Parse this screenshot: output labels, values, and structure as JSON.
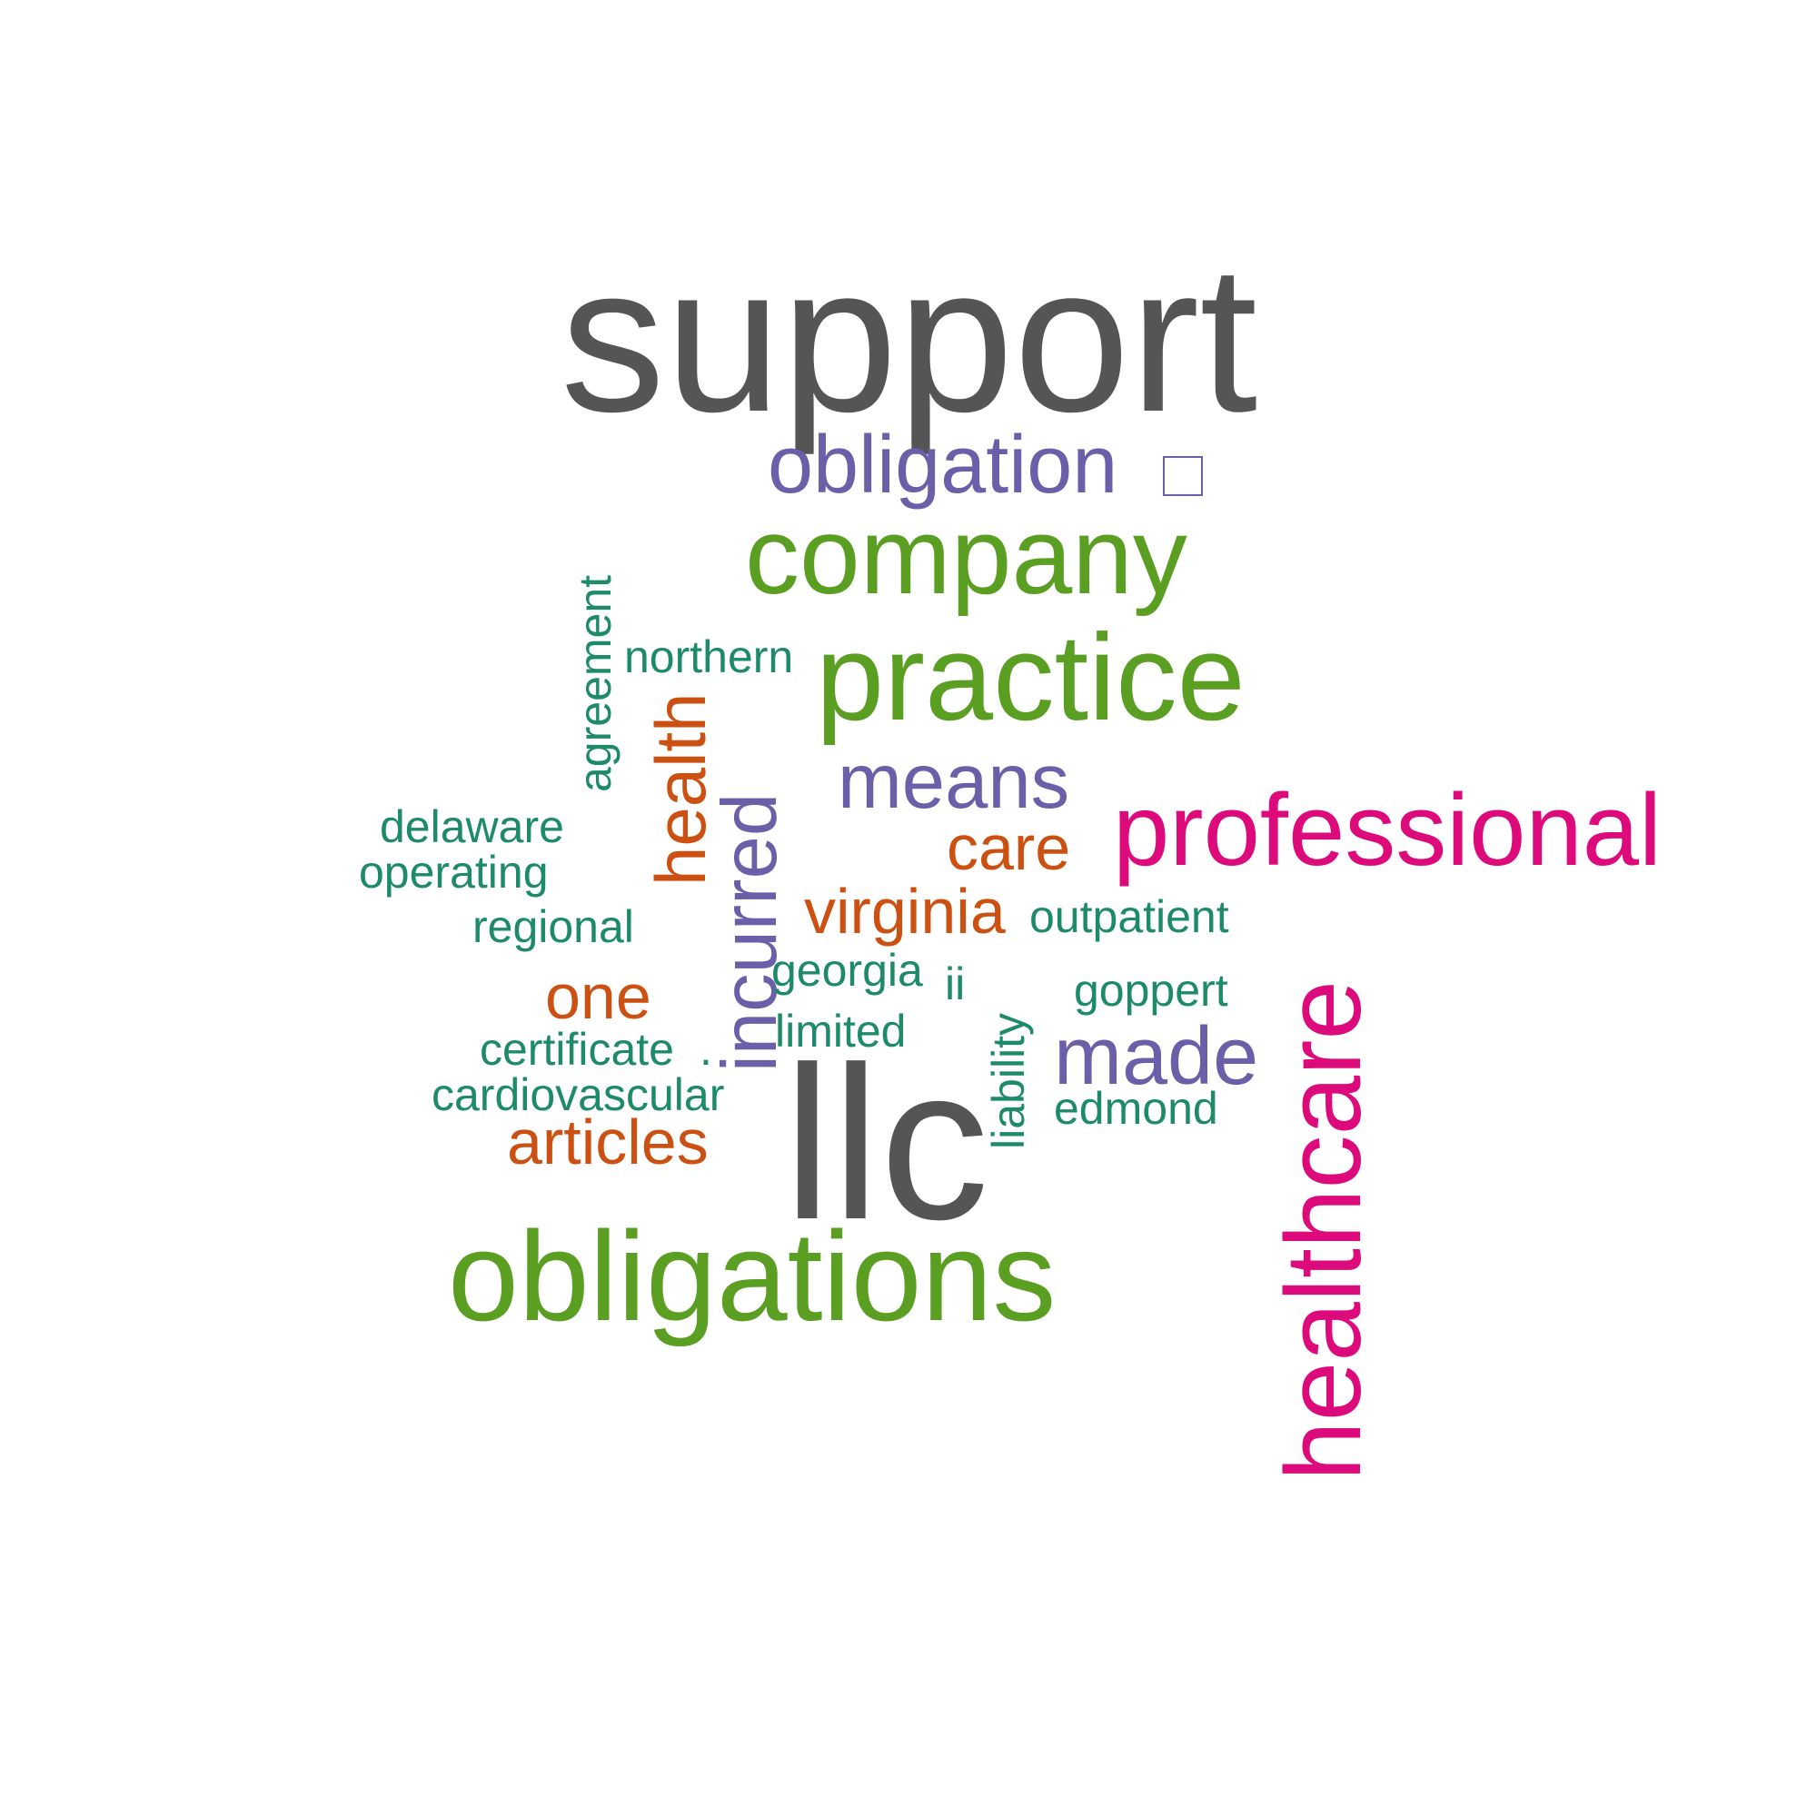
{
  "colors": {
    "gray": "#555555",
    "green": "#5a9e22",
    "purple": "#6a5fa8",
    "teal": "#1d8a69",
    "orange": "#cc5011",
    "pink": "#dd0a7b"
  },
  "words": {
    "support": "support",
    "obligation": "obligation",
    "company": "company",
    "practice": "practice",
    "agreement": "agreement",
    "northern": "northern",
    "health": "health",
    "incurred": "incurred",
    "means": "means",
    "professional": "professional",
    "delaware": "delaware",
    "operating": "operating",
    "care": "care",
    "regional": "regional",
    "virginia": "virginia",
    "outpatient": "outpatient",
    "georgia": "georgia",
    "ii": "ii",
    "one": "one",
    "goppert": "goppert",
    "limited": "limited",
    "certificate": "certificate",
    "dot": ".",
    "liability": "liability",
    "made": "made",
    "cardiovascular": "cardiovascular",
    "edmond": "edmond",
    "articles": "articles",
    "llc": "llc",
    "healthcare": "healthcare",
    "obligations": "obligations"
  }
}
